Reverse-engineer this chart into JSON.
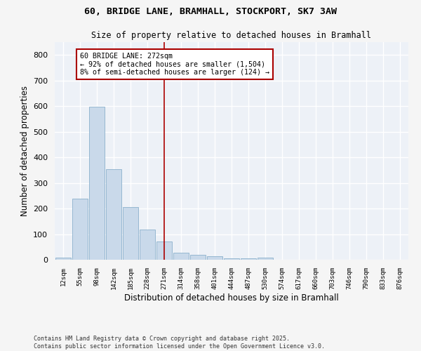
{
  "title_line1": "60, BRIDGE LANE, BRAMHALL, STOCKPORT, SK7 3AW",
  "title_line2": "Size of property relative to detached houses in Bramhall",
  "xlabel": "Distribution of detached houses by size in Bramhall",
  "ylabel": "Number of detached properties",
  "bar_color": "#c9d9ea",
  "bar_edge_color": "#8ab0cc",
  "background_color": "#edf1f7",
  "grid_color": "#ffffff",
  "categories": [
    "12sqm",
    "55sqm",
    "98sqm",
    "142sqm",
    "185sqm",
    "228sqm",
    "271sqm",
    "314sqm",
    "358sqm",
    "401sqm",
    "444sqm",
    "487sqm",
    "530sqm",
    "574sqm",
    "617sqm",
    "660sqm",
    "703sqm",
    "746sqm",
    "790sqm",
    "833sqm",
    "876sqm"
  ],
  "values": [
    8,
    238,
    598,
    355,
    207,
    117,
    70,
    28,
    18,
    13,
    5,
    5,
    8,
    0,
    0,
    0,
    0,
    0,
    0,
    0,
    0
  ],
  "vline_x": 6,
  "vline_color": "#aa0000",
  "annotation_text": "60 BRIDGE LANE: 272sqm\n← 92% of detached houses are smaller (1,504)\n8% of semi-detached houses are larger (124) →",
  "annotation_box_color": "#ffffff",
  "annotation_box_edge_color": "#aa0000",
  "ylim": [
    0,
    850
  ],
  "yticks": [
    0,
    100,
    200,
    300,
    400,
    500,
    600,
    700,
    800
  ],
  "footer_line1": "Contains HM Land Registry data © Crown copyright and database right 2025.",
  "footer_line2": "Contains public sector information licensed under the Open Government Licence v3.0."
}
